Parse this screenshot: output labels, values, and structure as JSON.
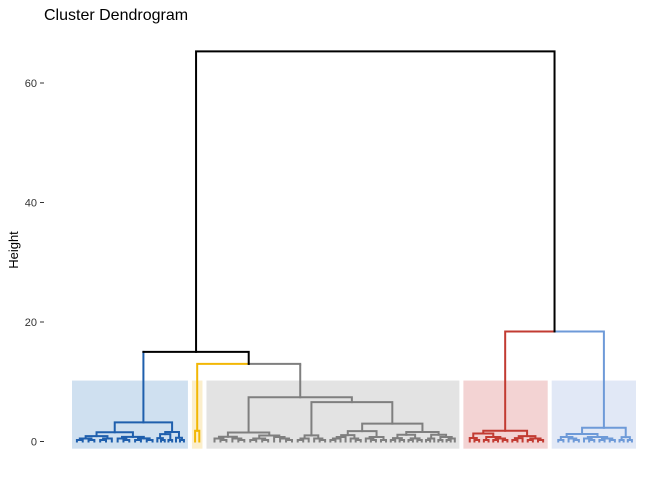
{
  "chart_data": {
    "type": "dendrogram",
    "title": "Cluster Dendrogram",
    "xlabel": "",
    "ylabel": "Height",
    "ylim": [
      -1.5,
      65
    ],
    "y_ticks": [
      0,
      20,
      40,
      60
    ],
    "grid": false,
    "legend": "none",
    "root_height": 65.3,
    "link_color": "#000000",
    "merges": [
      {
        "left": "left-group",
        "right": "right-group",
        "height": 65.3
      },
      {
        "left": "blue",
        "right": "yellow+gray",
        "height": 15.0
      },
      {
        "left": "yellow",
        "right": "gray",
        "height": 13.0
      },
      {
        "left": "red",
        "right": "light-blue",
        "height": 18.4
      }
    ],
    "clusters": [
      {
        "id": "blue",
        "color": "#1f5fad",
        "fill": "#cfe0f0",
        "leaves": 22,
        "height": 15.0,
        "box_height": 10.2
      },
      {
        "id": "yellow",
        "color": "#f2b705",
        "fill": "#fbeecb",
        "leaves": 2,
        "height": 13.0,
        "box_height": 10.2
      },
      {
        "id": "gray",
        "color": "#7f7f7f",
        "fill": "#e3e3e3",
        "leaves": 48,
        "height": 13.0,
        "box_height": 10.2
      },
      {
        "id": "red",
        "color": "#c23b32",
        "fill": "#f3d3d3",
        "leaves": 16,
        "height": 18.4,
        "box_height": 10.2
      },
      {
        "id": "light-blue",
        "color": "#6e9ad8",
        "fill": "#e1e8f6",
        "leaves": 16,
        "height": 18.4,
        "box_height": 10.2
      }
    ]
  }
}
